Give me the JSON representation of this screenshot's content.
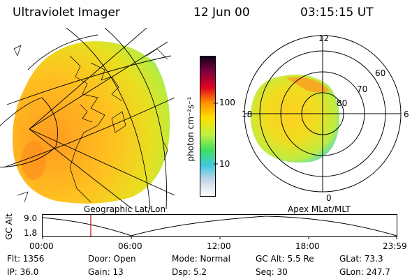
{
  "header": {
    "instrument": "Ultraviolet Imager",
    "date": "12 Jun 00",
    "time": "03:15:15 UT"
  },
  "colorbar": {
    "unit_label": "photon cm⁻²s⁻¹",
    "tick_major": "100",
    "tick_minor": "10",
    "stops": [
      "#ffffff",
      "#c8d8e8",
      "#40c8e0",
      "#40e060",
      "#c0f040",
      "#ffe000",
      "#ff9000",
      "#e00020",
      "#800040",
      "#100020"
    ]
  },
  "left_panel": {
    "label": "Geographic Lat/Lon"
  },
  "right_panel": {
    "label": "Apex MLat/MLT",
    "mlt_labels": {
      "top": "12",
      "left": "18",
      "right": "6",
      "bottom": "0"
    },
    "lat_labels": [
      "60",
      "70",
      "80"
    ]
  },
  "timeline": {
    "ylabel": "GC Alt",
    "ytick_top": "9.0",
    "ytick_bottom": "1.8",
    "xticks": [
      "00:00",
      "06:00",
      "12:00",
      "18:00",
      "23:59"
    ],
    "marker_color": "#cc0000"
  },
  "info": {
    "flt": "Flt: 1356",
    "ip": "IP: 36.0",
    "door": "Door: Open",
    "gain": "Gain: 13",
    "mode": "Mode: Normal",
    "dsp": "Dsp:    5.2",
    "gcalt": "GC Alt: 5.5 Re",
    "seq": "Seq: 30",
    "glat": "GLat:   73.3",
    "glon": "GLon: 247.7"
  }
}
